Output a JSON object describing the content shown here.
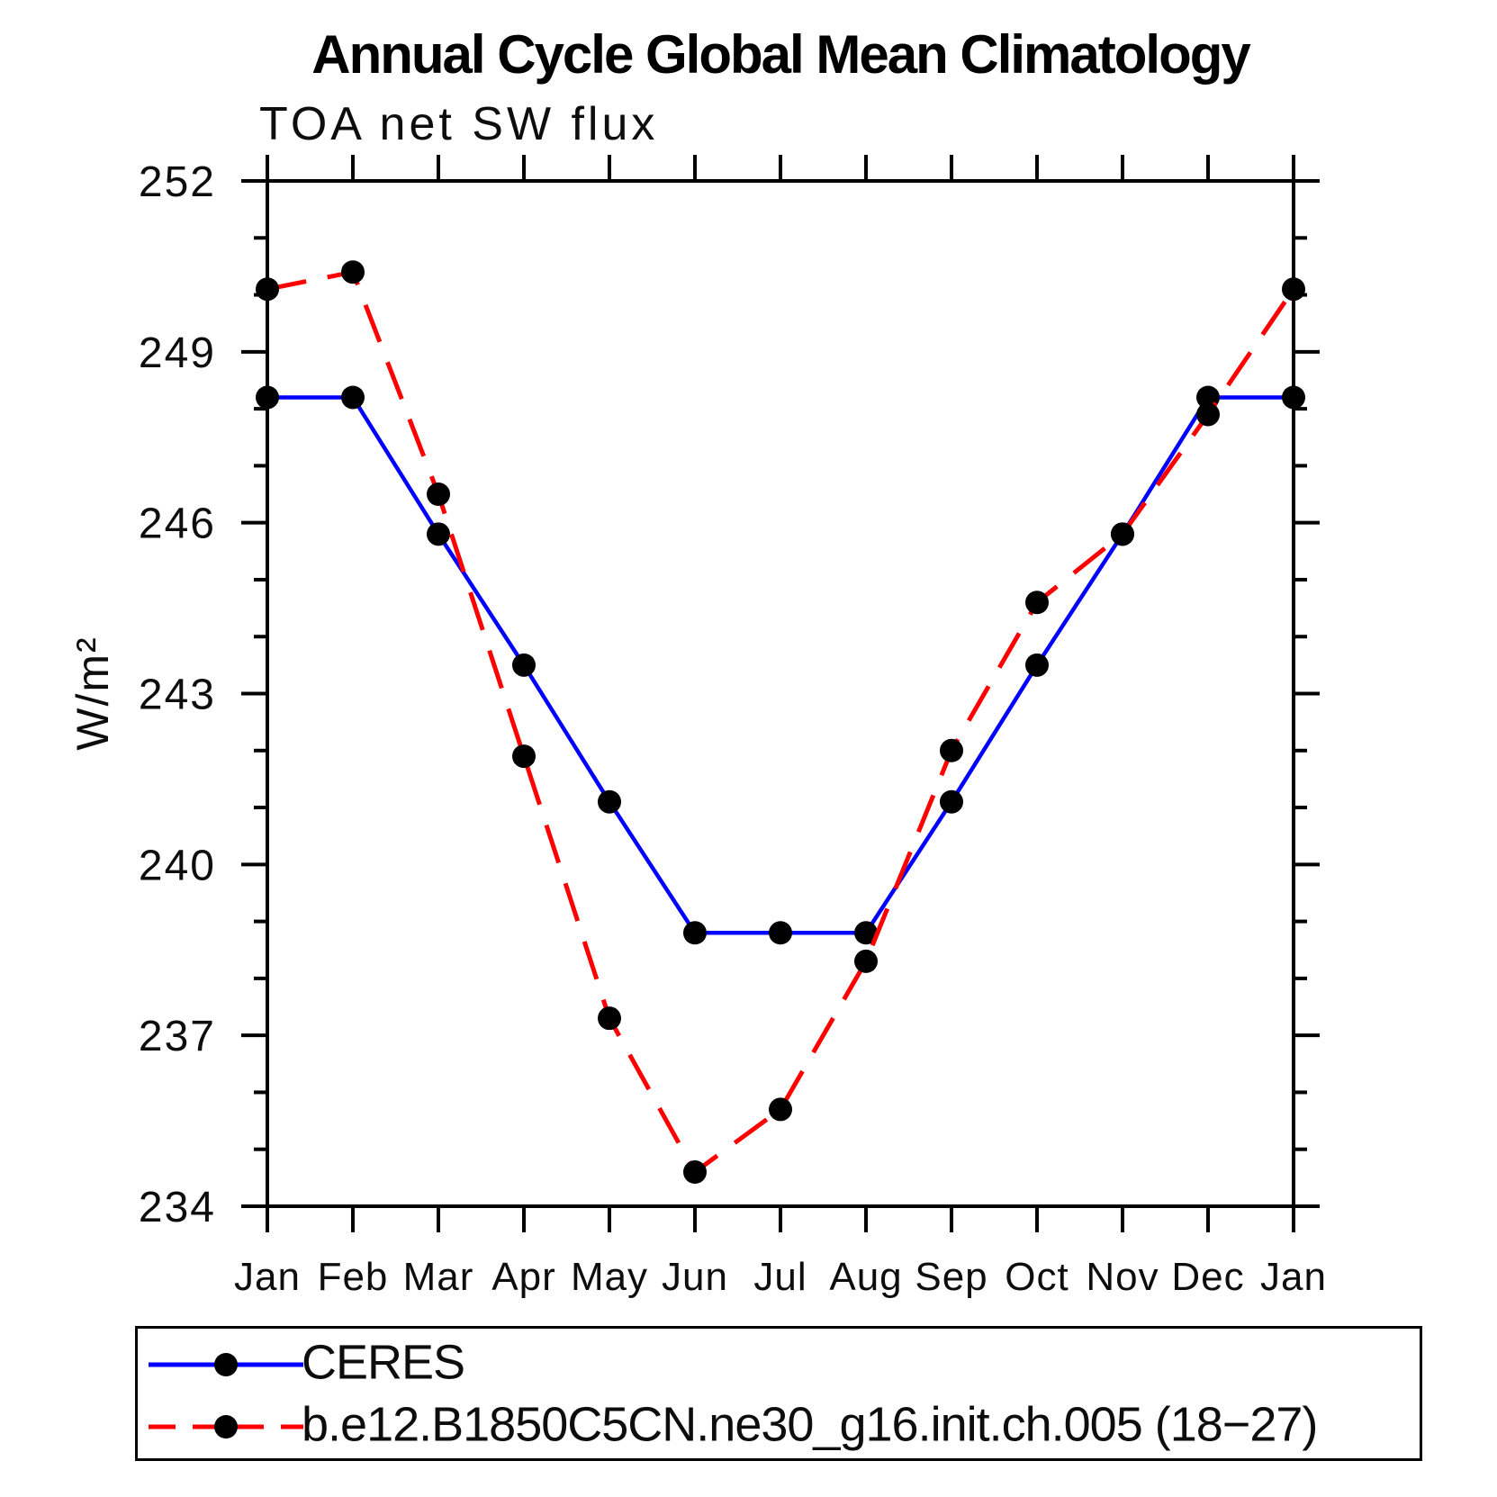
{
  "chart_data": {
    "type": "line",
    "title": "Annual Cycle Global Mean Climatology",
    "subtitle": "TOA net SW flux",
    "ylabel": "W/m²",
    "xlabel": "",
    "x_categories": [
      "Jan",
      "Feb",
      "Mar",
      "Apr",
      "May",
      "Jun",
      "Jul",
      "Aug",
      "Sep",
      "Oct",
      "Nov",
      "Dec",
      "Jan"
    ],
    "ylim": [
      234,
      252
    ],
    "ytick_major": [
      234,
      237,
      240,
      243,
      246,
      249,
      252
    ],
    "ytick_minor_step": 1,
    "grid": false,
    "legend_position": "bottom",
    "frame_color": "#000000",
    "marker_color": "#000000",
    "series": [
      {
        "name": "CERES",
        "color": "#0000ff",
        "style": "solid",
        "marker": "circle",
        "values": [
          248.2,
          248.2,
          245.8,
          243.5,
          241.1,
          238.8,
          238.8,
          238.8,
          241.1,
          243.5,
          245.8,
          248.2,
          248.2
        ]
      },
      {
        "name": "b.e12.B1850C5CN.ne30_g16.init.ch.005 (18−27)",
        "color": "#ff0000",
        "style": "dashed",
        "marker": "circle",
        "values": [
          250.1,
          250.4,
          246.5,
          241.9,
          237.3,
          234.6,
          235.7,
          238.3,
          242.0,
          244.6,
          245.8,
          247.9,
          250.1
        ]
      }
    ]
  }
}
